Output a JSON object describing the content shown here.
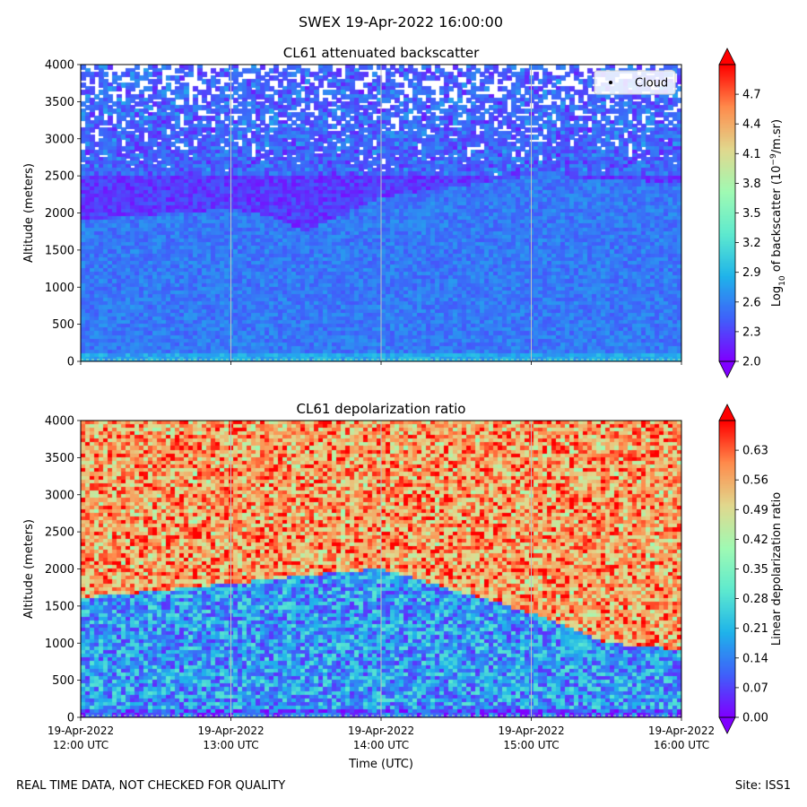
{
  "figure_title": "SWEX 19-Apr-2022 16:00:00",
  "footer": {
    "left": "REAL TIME DATA, NOT CHECKED FOR QUALITY",
    "right": "Site: ISS1"
  },
  "colors": {
    "cmap": [
      "#7f00ff",
      "#3f61fa",
      "#1fb4ea",
      "#5eeacf",
      "#a0fab3",
      "#e1d88e",
      "#ff8c4d",
      "#ff0000"
    ],
    "gridline": "#bfbfbf"
  },
  "chart_data": [
    {
      "type": "heatmap",
      "title": "CL61 attenuated backscatter",
      "xlabel": "",
      "ylabel": "Altitude (meters)",
      "ylim": [
        0,
        4000
      ],
      "yticks": [
        "0",
        "500",
        "1000",
        "1500",
        "2000",
        "2500",
        "3000",
        "3500",
        "4000"
      ],
      "xlim": [
        "19-Apr-2022 12:00 UTC",
        "19-Apr-2022 16:00 UTC"
      ],
      "xticks": [],
      "grid": "vertical at hours",
      "legend": {
        "position": "top-right",
        "entries": [
          "Cloud"
        ]
      },
      "colorbar": {
        "label_prefix": "Log",
        "label_sub": "10",
        "label_mid": " of backscatter (10",
        "label_sup": "−9",
        "label_suffix": "/m.sr)",
        "range": [
          2.0,
          5.0
        ],
        "extend": "both",
        "ticks": [
          "2.0",
          "2.3",
          "2.6",
          "2.9",
          "3.2",
          "3.5",
          "3.8",
          "4.1",
          "4.4",
          "4.7"
        ]
      },
      "features": {
        "lowest_layer_value": 2.8,
        "boundary_layer_value": 2.55,
        "above_boundary_value": 2.25,
        "boundary_layer_top_m": [
          [
            12.0,
            1900
          ],
          [
            13.0,
            2050
          ],
          [
            13.25,
            1950
          ],
          [
            13.5,
            1750
          ],
          [
            14.0,
            2200
          ],
          [
            15.0,
            2500
          ],
          [
            16.0,
            2400
          ]
        ],
        "noise_begins_m": 2500
      }
    },
    {
      "type": "heatmap",
      "title": "CL61 depolarization ratio",
      "xlabel": "Time (UTC)",
      "ylabel": "Altitude (meters)",
      "ylim": [
        0,
        4000
      ],
      "yticks": [
        "0",
        "500",
        "1000",
        "1500",
        "2000",
        "2500",
        "3000",
        "3500",
        "4000"
      ],
      "xlim": [
        "19-Apr-2022 12:00 UTC",
        "19-Apr-2022 16:00 UTC"
      ],
      "xticks": [
        {
          "date": "19-Apr-2022",
          "time": "12:00 UTC"
        },
        {
          "date": "19-Apr-2022",
          "time": "13:00 UTC"
        },
        {
          "date": "19-Apr-2022",
          "time": "14:00 UTC"
        },
        {
          "date": "19-Apr-2022",
          "time": "15:00 UTC"
        },
        {
          "date": "19-Apr-2022",
          "time": "16:00 UTC"
        }
      ],
      "grid": "vertical at hours",
      "colorbar": {
        "label": "Linear depolarization ratio",
        "range": [
          0.0,
          0.7
        ],
        "extend": "both",
        "ticks": [
          "0.00",
          "0.07",
          "0.14",
          "0.21",
          "0.28",
          "0.35",
          "0.42",
          "0.49",
          "0.56",
          "0.63"
        ]
      },
      "features": {
        "lowest_layer_value": 0.08,
        "boundary_layer_value": 0.17,
        "above_boundary_value": 0.5,
        "boundary_layer_top_m": [
          [
            12.0,
            1600
          ],
          [
            13.0,
            1800
          ],
          [
            14.0,
            2000
          ],
          [
            15.0,
            1400
          ],
          [
            15.5,
            1000
          ],
          [
            16.0,
            900
          ]
        ]
      }
    }
  ]
}
